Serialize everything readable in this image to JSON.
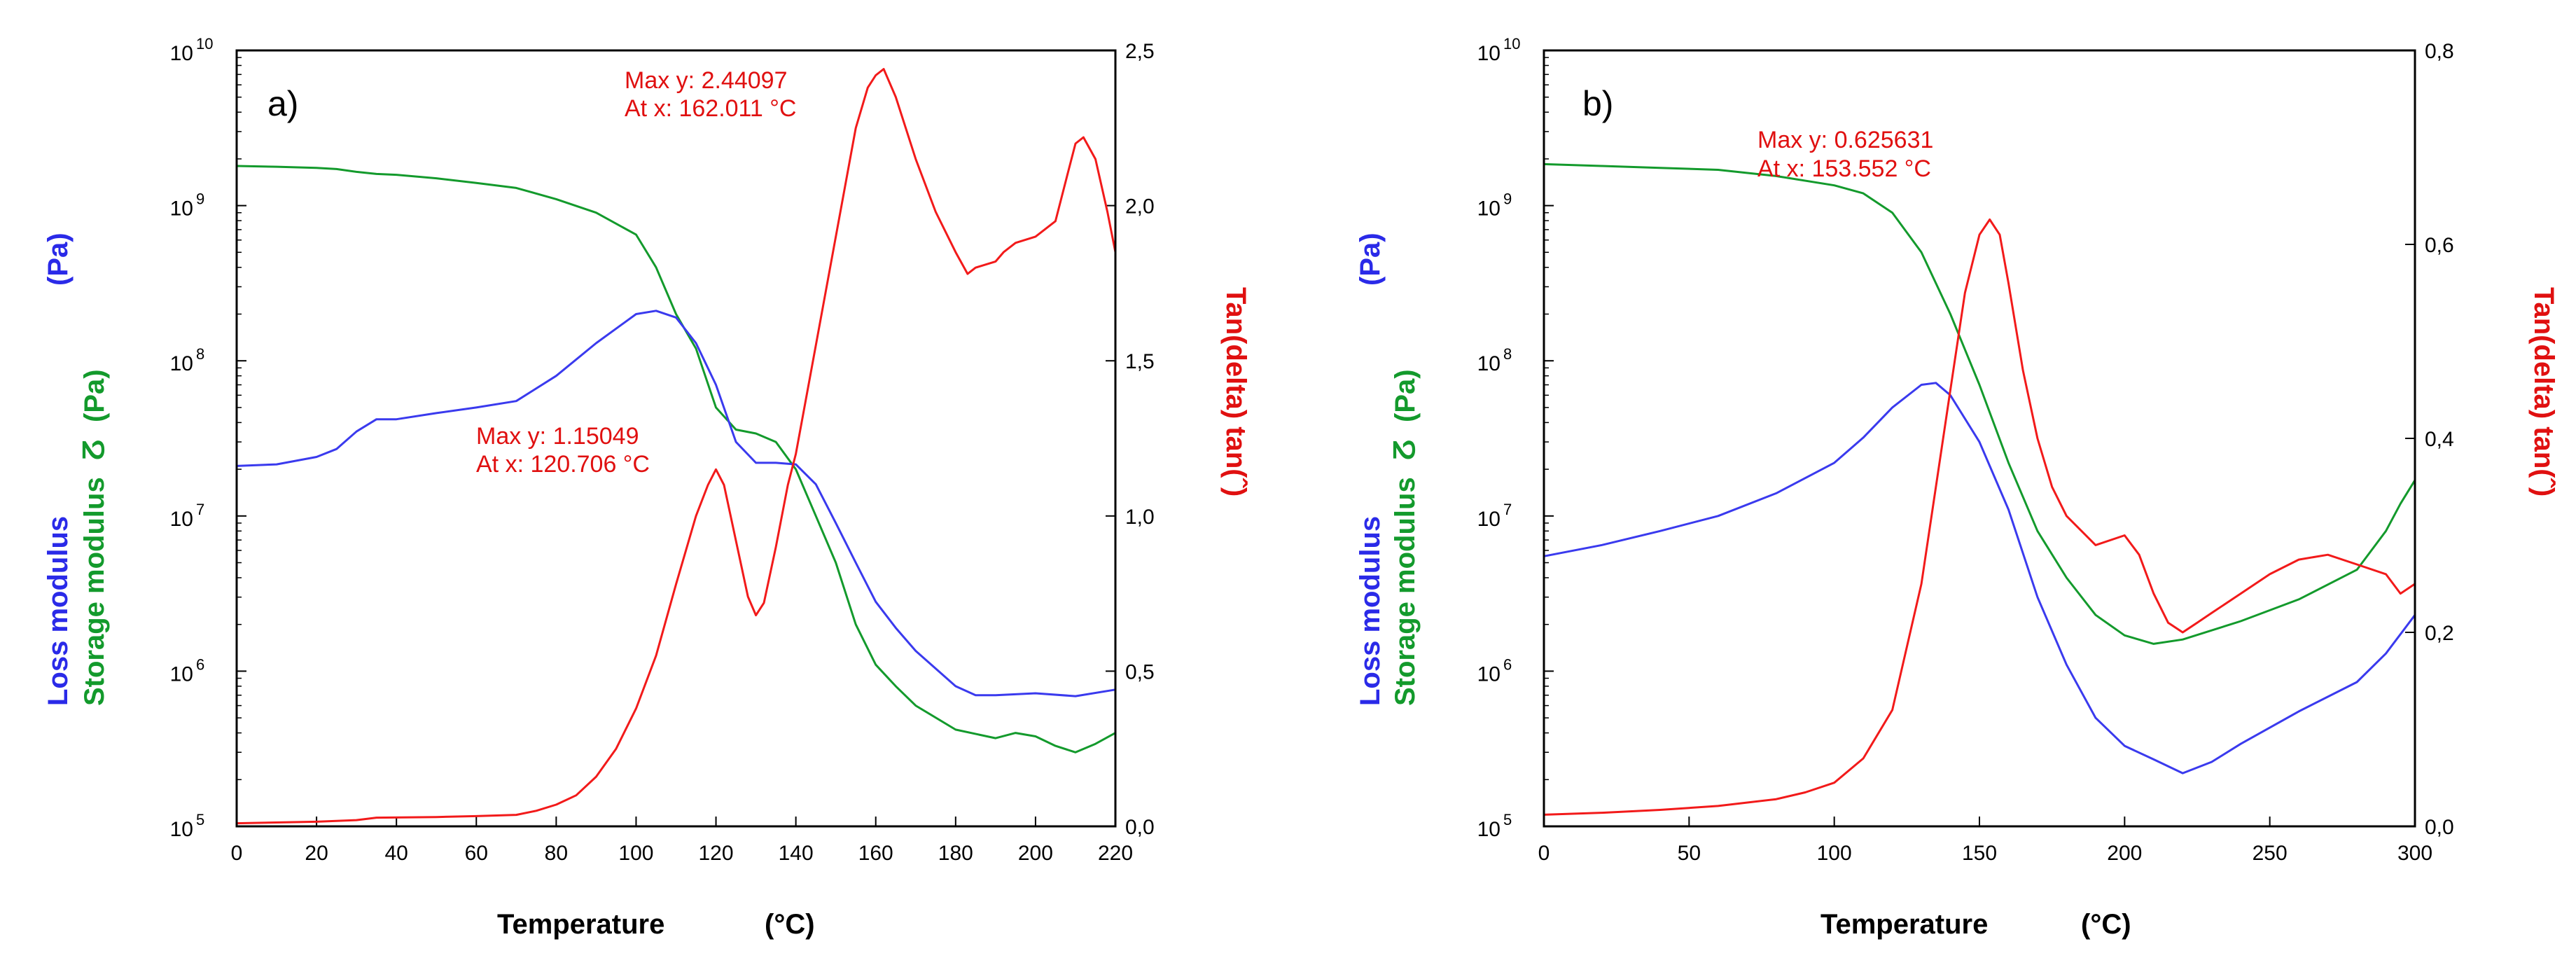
{
  "chart_data": [
    {
      "type": "line",
      "panel_label": "a)",
      "xlabel": "Temperature",
      "xunit": "(°C)",
      "xlim": [
        0,
        220
      ],
      "xticks": [
        "0",
        "20",
        "40",
        "60",
        "80",
        "100",
        "120",
        "140",
        "160",
        "180",
        "200",
        "220"
      ],
      "ylabel_left": {
        "loss": "Loss modulus",
        "loss_unit": "(Pa)",
        "storage": "Storage modulus",
        "storage_sym": "ⵒ",
        "storage_unit": "(Pa)"
      },
      "ylim_left": [
        100000,
        10000000000
      ],
      "yticks_left": [
        {
          "base": "10",
          "exp": "10"
        },
        {
          "base": "10",
          "exp": "9"
        },
        {
          "base": "10",
          "exp": "8"
        },
        {
          "base": "10",
          "exp": "7"
        },
        {
          "base": "10",
          "exp": "6"
        },
        {
          "base": "10",
          "exp": "5"
        }
      ],
      "ylabel_right": "Tan(delta) tan(ˆ)",
      "ylim_right": [
        0,
        2.5
      ],
      "yticks_right": [
        "2,5",
        "2,0",
        "1,5",
        "1,0",
        "0,5",
        "0,0"
      ],
      "series": [
        {
          "name": "Storage modulus",
          "axis": "left",
          "color": "#139a2c",
          "x": [
            0,
            10,
            20,
            25,
            30,
            35,
            40,
            50,
            60,
            70,
            80,
            90,
            100,
            105,
            110,
            115,
            120,
            125,
            130,
            135,
            140,
            145,
            150,
            155,
            160,
            165,
            170,
            180,
            190,
            195,
            200,
            205,
            210,
            215,
            220
          ],
          "y": [
            1800000000.0,
            1780000000.0,
            1750000000.0,
            1720000000.0,
            1650000000.0,
            1600000000.0,
            1580000000.0,
            1500000000.0,
            1400000000.0,
            1300000000.0,
            1100000000.0,
            900000000.0,
            650000000.0,
            400000000.0,
            200000000.0,
            120000000.0,
            50000000.0,
            36000000.0,
            34000000.0,
            30000000.0,
            20000000.0,
            10000000.0,
            5000000.0,
            2000000.0,
            1100000.0,
            800000.0,
            600000.0,
            420000.0,
            370000.0,
            400000.0,
            380000.0,
            330000.0,
            300000.0,
            340000.0,
            400000.0
          ]
        },
        {
          "name": "Loss modulus",
          "axis": "left",
          "color": "#3a3aee",
          "x": [
            0,
            10,
            20,
            25,
            30,
            35,
            40,
            50,
            60,
            70,
            80,
            90,
            100,
            105,
            110,
            115,
            120,
            125,
            130,
            135,
            140,
            145,
            150,
            155,
            160,
            165,
            170,
            180,
            185,
            190,
            200,
            210,
            220
          ],
          "y": [
            21000000.0,
            21500000.0,
            24000000.0,
            27000000.0,
            35000000.0,
            42000000.0,
            42000000.0,
            46000000.0,
            50000000.0,
            55000000.0,
            80000000.0,
            130000000.0,
            200000000.0,
            210000000.0,
            190000000.0,
            130000000.0,
            70000000.0,
            30000000.0,
            22000000.0,
            22000000.0,
            21500000.0,
            16000000.0,
            9000000.0,
            5000000.0,
            2800000.0,
            1900000.0,
            1350000.0,
            800000.0,
            700000.0,
            700000.0,
            720000.0,
            690000.0,
            760000.0
          ]
        },
        {
          "name": "Tan(delta)",
          "axis": "right",
          "color": "#f21a1a",
          "x": [
            0,
            20,
            30,
            35,
            50,
            60,
            70,
            75,
            80,
            85,
            90,
            95,
            100,
            105,
            110,
            115,
            118,
            120,
            122,
            125,
            128,
            130,
            132,
            135,
            138,
            140,
            145,
            150,
            155,
            158,
            160,
            162,
            165,
            170,
            175,
            180,
            183,
            185,
            190,
            192,
            195,
            200,
            205,
            208,
            210,
            212,
            215,
            218,
            220
          ],
          "y": [
            0.01,
            0.015,
            0.02,
            0.028,
            0.03,
            0.033,
            0.037,
            0.05,
            0.07,
            0.1,
            0.16,
            0.25,
            0.38,
            0.55,
            0.78,
            1.0,
            1.1,
            1.15,
            1.1,
            0.92,
            0.74,
            0.68,
            0.72,
            0.9,
            1.1,
            1.2,
            1.55,
            1.9,
            2.25,
            2.38,
            2.42,
            2.44,
            2.35,
            2.15,
            1.98,
            1.85,
            1.78,
            1.8,
            1.82,
            1.85,
            1.88,
            1.9,
            1.95,
            2.1,
            2.2,
            2.22,
            2.15,
            1.98,
            1.85
          ]
        }
      ],
      "annotations": [
        {
          "line1": "Max y: 2.44097",
          "line2": "At x: 162.011 °C"
        },
        {
          "line1": "Max y: 1.15049",
          "line2": "At x: 120.706 °C"
        }
      ]
    },
    {
      "type": "line",
      "panel_label": "b)",
      "xlabel": "Temperature",
      "xunit": "(°C)",
      "xlim": [
        0,
        300
      ],
      "xticks": [
        "0",
        "50",
        "100",
        "150",
        "200",
        "250",
        "300"
      ],
      "ylabel_left": {
        "loss": "Loss modulus",
        "loss_unit": "(Pa)",
        "storage": "Storage modulus",
        "storage_sym": "ⵒ",
        "storage_unit": "(Pa)"
      },
      "ylim_left": [
        100000,
        10000000000
      ],
      "yticks_left": [
        {
          "base": "10",
          "exp": "10"
        },
        {
          "base": "10",
          "exp": "9"
        },
        {
          "base": "10",
          "exp": "8"
        },
        {
          "base": "10",
          "exp": "7"
        },
        {
          "base": "10",
          "exp": "6"
        },
        {
          "base": "10",
          "exp": "5"
        }
      ],
      "ylabel_right": "Tan(delta) tan(ˆ)",
      "ylim_right": [
        0,
        0.8
      ],
      "yticks_right": [
        "0,8",
        "0,6",
        "0,4",
        "0,2",
        "0,0"
      ],
      "series": [
        {
          "name": "Storage modulus",
          "axis": "left",
          "color": "#139a2c",
          "x": [
            0,
            20,
            40,
            60,
            80,
            100,
            110,
            120,
            130,
            140,
            150,
            160,
            170,
            180,
            190,
            200,
            210,
            220,
            240,
            260,
            280,
            290,
            295,
            300
          ],
          "y": [
            1850000000.0,
            1800000000.0,
            1750000000.0,
            1700000000.0,
            1550000000.0,
            1350000000.0,
            1200000000.0,
            900000000.0,
            500000000.0,
            200000000.0,
            70000000.0,
            22000000.0,
            8000000.0,
            4000000.0,
            2300000.0,
            1700000.0,
            1500000.0,
            1600000.0,
            2100000.0,
            2900000.0,
            4500000.0,
            8000000.0,
            12000000.0,
            17000000.0
          ]
        },
        {
          "name": "Loss modulus",
          "axis": "left",
          "color": "#3a3aee",
          "x": [
            0,
            20,
            40,
            60,
            80,
            100,
            110,
            120,
            130,
            135,
            140,
            150,
            160,
            170,
            180,
            190,
            200,
            210,
            220,
            230,
            240,
            260,
            280,
            290,
            300
          ],
          "y": [
            5500000.0,
            6500000.0,
            8000000.0,
            10000000.0,
            14000000.0,
            22000000.0,
            32000000.0,
            50000000.0,
            70000000.0,
            72000000.0,
            60000000.0,
            30000000.0,
            11000000.0,
            3000000.0,
            1100000.0,
            500000.0,
            330000.0,
            270000.0,
            220000.0,
            260000.0,
            340000.0,
            550000.0,
            850000.0,
            1300000.0,
            2300000.0
          ]
        },
        {
          "name": "Tan(delta)",
          "axis": "right",
          "color": "#f21a1a",
          "x": [
            0,
            20,
            40,
            60,
            80,
            90,
            100,
            110,
            120,
            130,
            135,
            140,
            145,
            150,
            153.552,
            157,
            160,
            165,
            170,
            175,
            180,
            190,
            200,
            205,
            210,
            215,
            220,
            225,
            230,
            240,
            250,
            260,
            270,
            280,
            290,
            295,
            300
          ],
          "y": [
            0.012,
            0.014,
            0.017,
            0.021,
            0.028,
            0.035,
            0.045,
            0.07,
            0.12,
            0.25,
            0.35,
            0.45,
            0.55,
            0.61,
            0.625631,
            0.61,
            0.56,
            0.47,
            0.4,
            0.35,
            0.32,
            0.29,
            0.3,
            0.28,
            0.24,
            0.21,
            0.2,
            0.21,
            0.22,
            0.24,
            0.26,
            0.275,
            0.28,
            0.27,
            0.26,
            0.24,
            0.25
          ]
        }
      ],
      "annotations": [
        {
          "line1": "Max y: 0.625631",
          "line2": "At x: 153.552 °C"
        }
      ]
    }
  ]
}
